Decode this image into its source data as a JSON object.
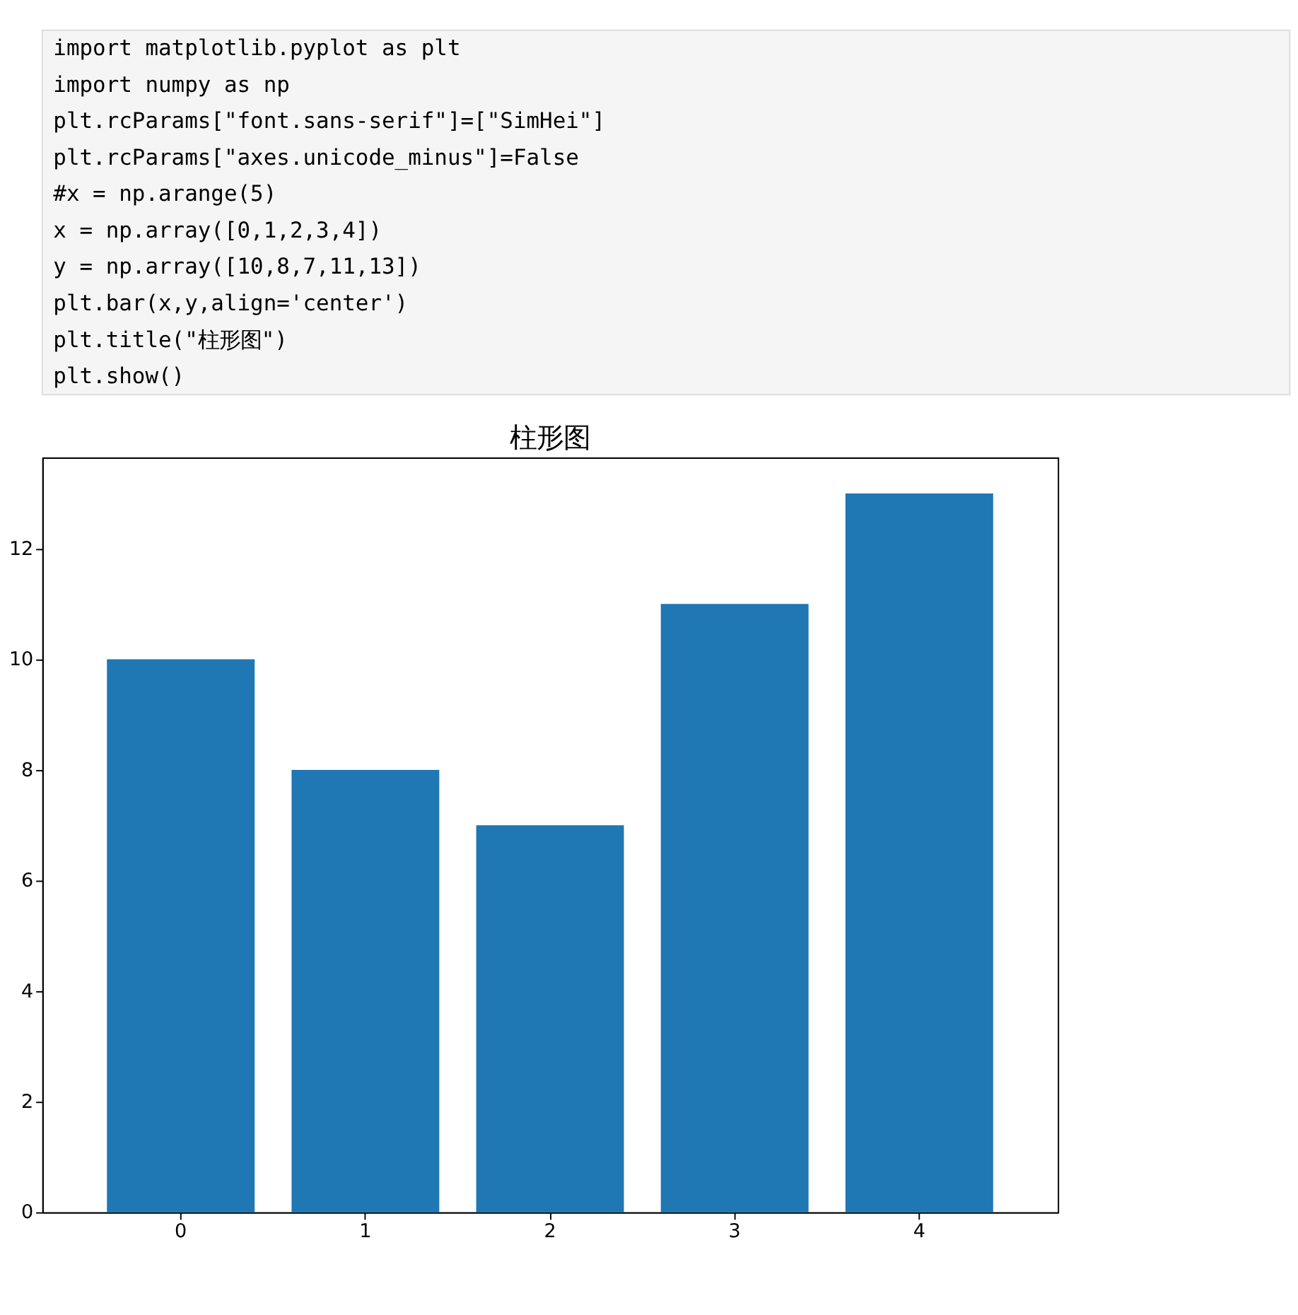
{
  "chart_data": {
    "type": "bar",
    "title": "柱形图",
    "annotations": [
      "import matplotlib.pyplot as plt",
      "import numpy as np",
      "plt.rcParams[\"font.sans-serif\"]=[\"SimHei\"]",
      "plt.rcParams[\"axes.unicode_minus\"]=False",
      "#x = np.arange(5)",
      "x = np.array([0,1,2,3,4])",
      "y = np.array([10,8,7,11,13])",
      "plt.bar(x,y,align='center')",
      "plt.title(\"柱形图\")",
      "plt.show()"
    ],
    "categories": [
      "0",
      "1",
      "2",
      "3",
      "4"
    ],
    "values": [
      10,
      8,
      7,
      11,
      13
    ],
    "color": "#1f77b4",
    "ylim": [
      0,
      13.65
    ],
    "yticks": [
      0,
      2,
      4,
      6,
      8,
      10,
      12
    ],
    "grid": false
  }
}
